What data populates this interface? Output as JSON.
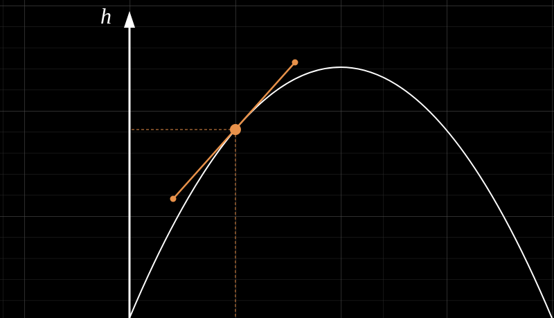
{
  "axis_label": "h"
}
